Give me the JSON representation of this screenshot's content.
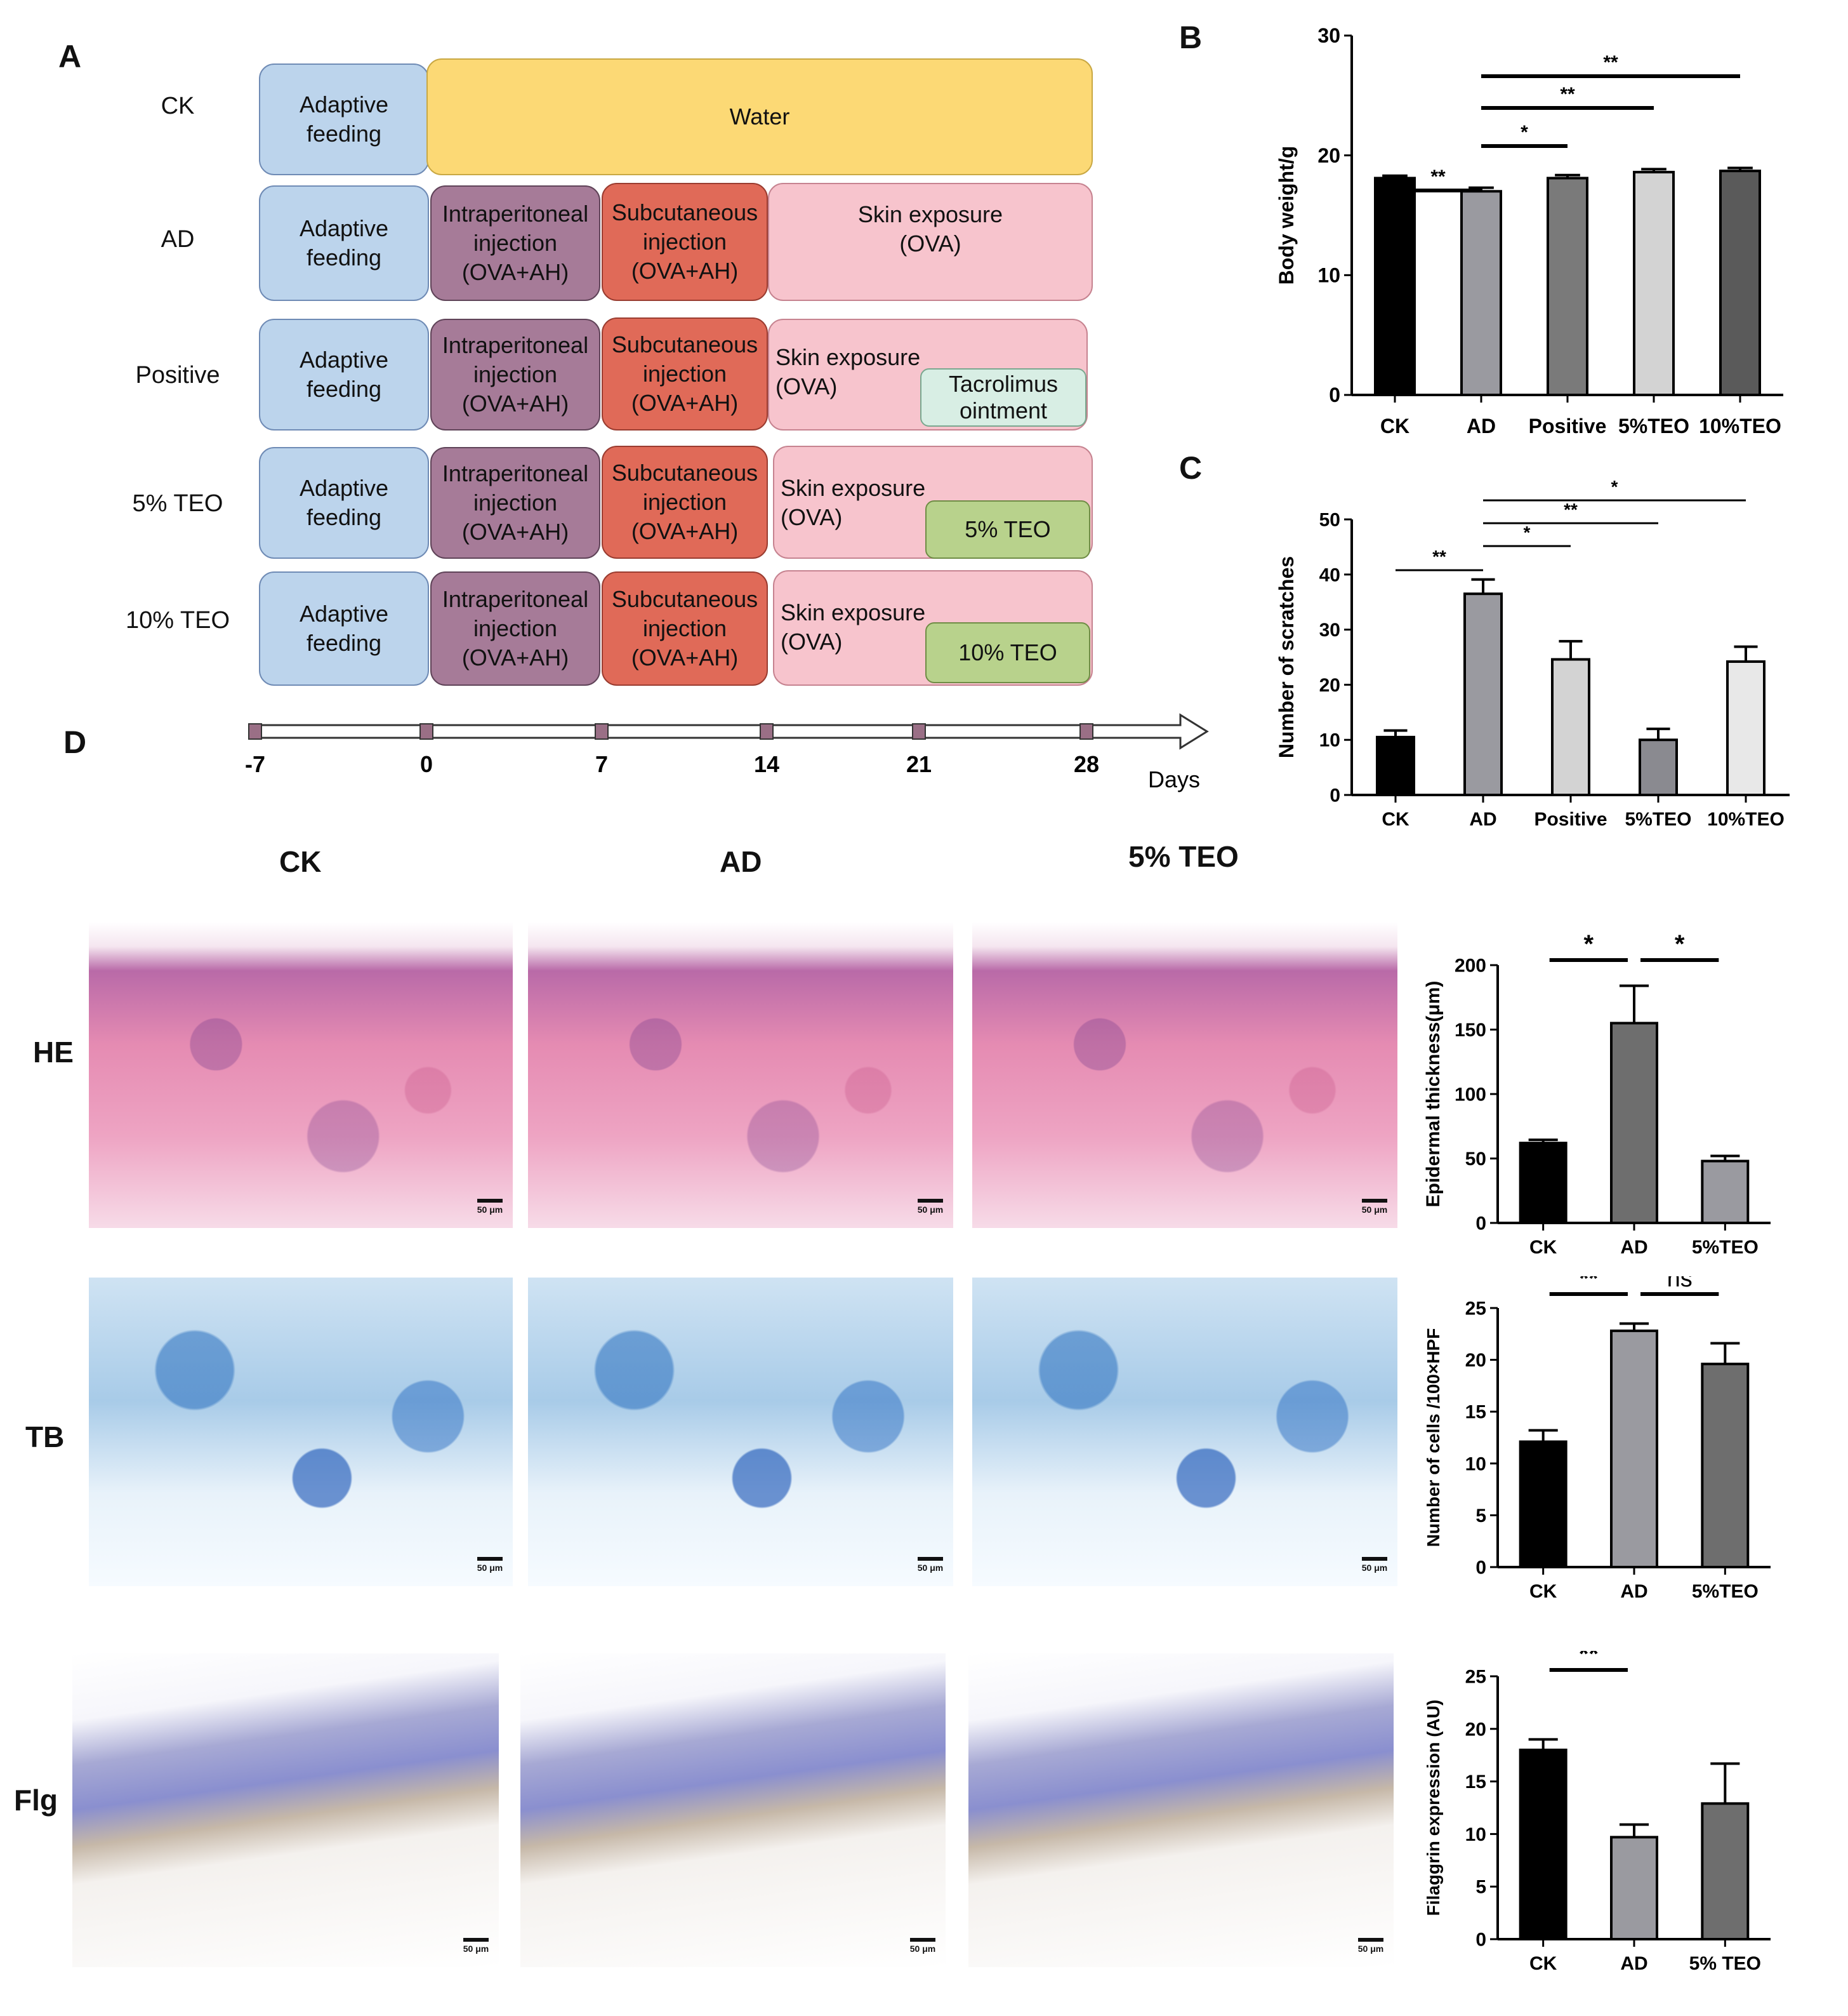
{
  "panel_letters": {
    "a": "A",
    "b": "B",
    "c": "C",
    "d": "D"
  },
  "schedule": {
    "groups": [
      "CK",
      "AD",
      "Positive",
      "5% TEO",
      "10% TEO"
    ],
    "adaptive": "Adaptive\nfeeding",
    "water": "Water",
    "intraperitoneal": "Intraperitoneal\ninjection\n(OVA+AH)",
    "subcutaneous": "Subcutaneous\ninjection\n(OVA+AH)",
    "skin_exposure_ad": "Skin exposure\n(OVA)",
    "skin_exposure": "Skin exposure\n(OVA)",
    "tacrolimus": "Tacrolimus\nointment",
    "teo5": "5% TEO",
    "teo10": "10% TEO",
    "timeline_ticks": [
      "-7",
      "0",
      "7",
      "14",
      "21",
      "28"
    ],
    "timeline_unit": "Days"
  },
  "histology": {
    "columns": [
      "CK",
      "AD",
      "5% TEO"
    ],
    "rows": [
      "HE",
      "TB",
      "Flg"
    ],
    "scale_label": "50 μm"
  },
  "chart_data": [
    {
      "id": "B",
      "type": "bar",
      "categories": [
        "CK",
        "AD",
        "Positive",
        "5%TEO",
        "10%TEO"
      ],
      "values": [
        18.1,
        17.0,
        18.1,
        18.6,
        18.7
      ],
      "errors": [
        0.2,
        0.3,
        0.25,
        0.25,
        0.25
      ],
      "colors": [
        "#000000",
        "#9a9aa0",
        "#7a7a7a",
        "#d3d3d3",
        "#5a5a5a"
      ],
      "ylabel": "Body weight/g",
      "ylim": [
        0,
        30
      ],
      "yticks": [
        "0",
        "10",
        "20",
        "30"
      ],
      "significance": [
        {
          "from": 0,
          "to": 1,
          "label": "**"
        },
        {
          "from": 1,
          "to": 2,
          "label": "*"
        },
        {
          "from": 1,
          "to": 3,
          "label": "**"
        },
        {
          "from": 1,
          "to": 4,
          "label": "**"
        }
      ]
    },
    {
      "id": "C",
      "type": "bar",
      "categories": [
        "CK",
        "AD",
        "Positive",
        "5%TEO",
        "10%TEO"
      ],
      "values": [
        10.5,
        36.5,
        24.6,
        10.0,
        24.2
      ],
      "errors": [
        1.2,
        2.6,
        3.3,
        2.0,
        2.7
      ],
      "colors": [
        "#000000",
        "#9a9aa0",
        "#d3d3d3",
        "#8a8a90",
        "#e8e8e8"
      ],
      "ylabel": "Number of scratches",
      "ylim": [
        0,
        50
      ],
      "yticks": [
        "0",
        "10",
        "20",
        "30",
        "40",
        "50"
      ],
      "significance": [
        {
          "from": 0,
          "to": 1,
          "label": "**"
        },
        {
          "from": 1,
          "to": 2,
          "label": "*"
        },
        {
          "from": 1,
          "to": 3,
          "label": "**"
        },
        {
          "from": 1,
          "to": 4,
          "label": "*"
        }
      ]
    },
    {
      "id": "HE",
      "type": "bar",
      "categories": [
        "CK",
        "AD",
        "5%TEO"
      ],
      "values": [
        62,
        155,
        48
      ],
      "errors": [
        2.5,
        29,
        4
      ],
      "colors": [
        "#000000",
        "#6e6e6e",
        "#9a9aa0"
      ],
      "ylabel": "Epidermal thickness(μm)",
      "ylim": [
        0,
        200
      ],
      "yticks": [
        "0",
        "50",
        "100",
        "150",
        "200"
      ],
      "significance": [
        {
          "from": 0,
          "to": 1,
          "label": "*"
        },
        {
          "from": 1,
          "to": 2,
          "label": "*"
        }
      ]
    },
    {
      "id": "TB",
      "type": "bar",
      "categories": [
        "CK",
        "AD",
        "5%TEO"
      ],
      "values": [
        12.1,
        22.8,
        19.6
      ],
      "errors": [
        1.1,
        0.7,
        2.0
      ],
      "colors": [
        "#000000",
        "#9a9aa0",
        "#6e6e6e"
      ],
      "ylabel": "Number of cells /100×HPF",
      "ylim": [
        0,
        25
      ],
      "yticks": [
        "0",
        "5",
        "10",
        "15",
        "20",
        "25"
      ],
      "significance": [
        {
          "from": 0,
          "to": 1,
          "label": "**"
        },
        {
          "from": 1,
          "to": 2,
          "label": "ns"
        }
      ]
    },
    {
      "id": "Flg",
      "type": "bar",
      "categories": [
        "CK",
        "AD",
        "5% TEO"
      ],
      "values": [
        18.0,
        9.7,
        12.9
      ],
      "errors": [
        1.0,
        1.2,
        3.8
      ],
      "colors": [
        "#000000",
        "#9a9aa0",
        "#6e6e6e"
      ],
      "ylabel": "Filaggrin expression (AU)",
      "ylim": [
        0,
        25
      ],
      "yticks": [
        "0",
        "5",
        "10",
        "15",
        "20",
        "25"
      ],
      "significance": [
        {
          "from": 0,
          "to": 1,
          "label": "**"
        }
      ]
    }
  ]
}
